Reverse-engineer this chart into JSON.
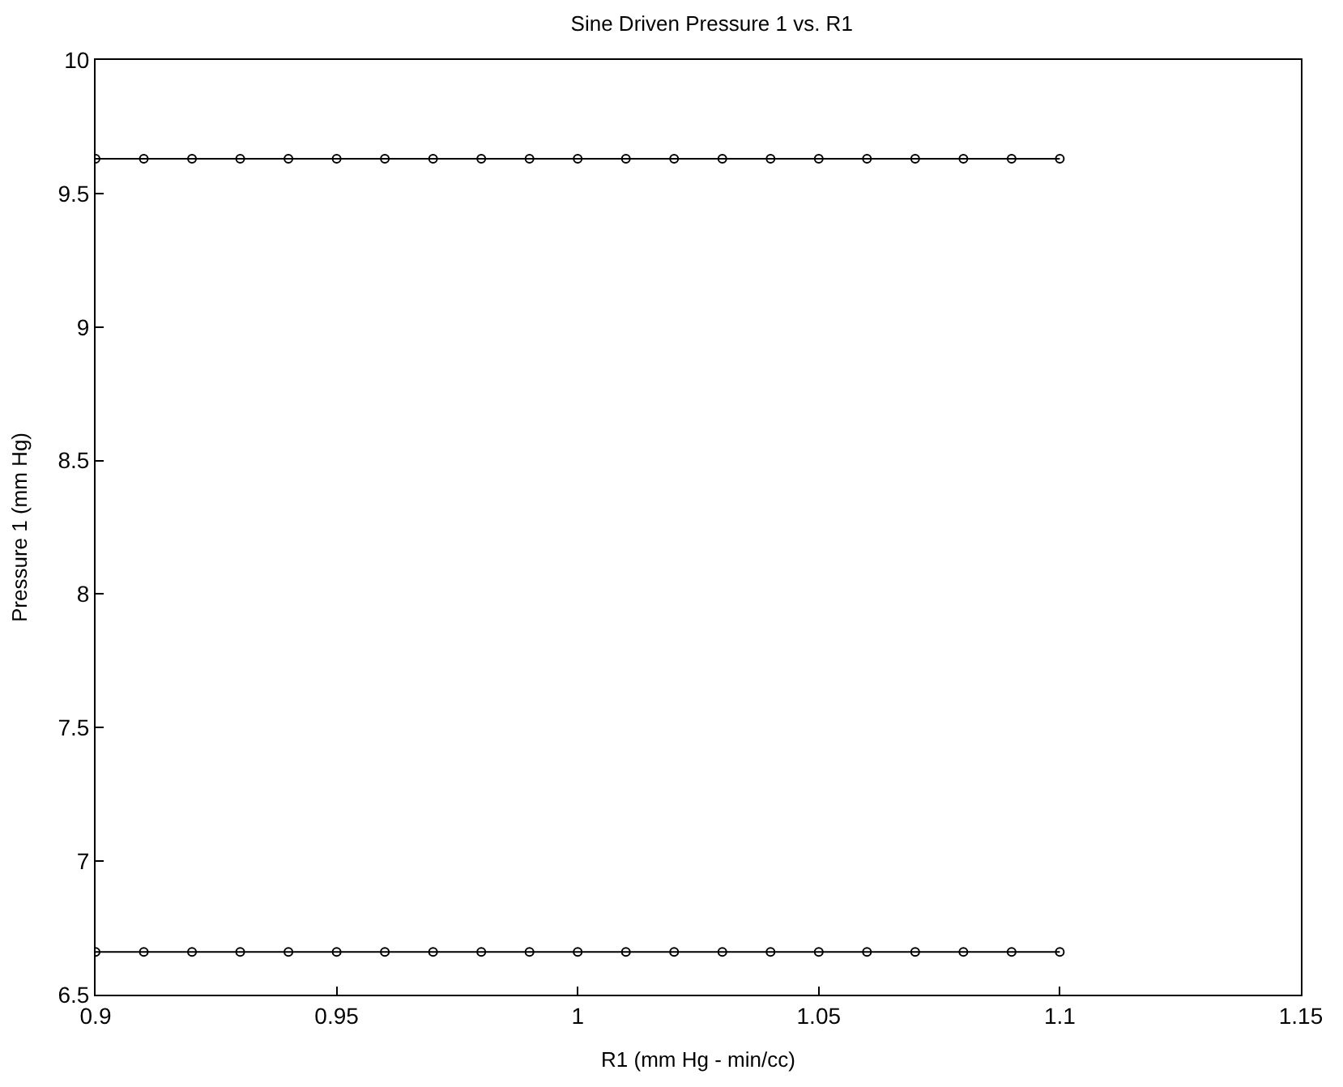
{
  "chart_data": {
    "type": "line",
    "title": "Sine Driven Pressure 1 vs. R1",
    "xlabel": "R1 (mm Hg - min/cc)",
    "ylabel": "Pressure 1 (mm Hg)",
    "x": [
      0.9,
      0.91,
      0.92,
      0.93,
      0.94,
      0.95,
      0.96,
      0.97,
      0.98,
      0.99,
      1.0,
      1.01,
      1.02,
      1.03,
      1.04,
      1.05,
      1.06,
      1.07,
      1.08,
      1.09,
      1.1
    ],
    "series": [
      {
        "color": "#000000",
        "values": [
          9.63,
          9.63,
          9.63,
          9.63,
          9.63,
          9.63,
          9.63,
          9.63,
          9.63,
          9.63,
          9.63,
          9.63,
          9.63,
          9.63,
          9.63,
          9.63,
          9.63,
          9.63,
          9.63,
          9.63,
          9.63
        ]
      },
      {
        "color": "#000000",
        "values": [
          6.66,
          6.66,
          6.66,
          6.66,
          6.66,
          6.66,
          6.66,
          6.66,
          6.66,
          6.66,
          6.66,
          6.66,
          6.66,
          6.66,
          6.66,
          6.66,
          6.66,
          6.66,
          6.66,
          6.66,
          6.66
        ]
      }
    ],
    "xlim": [
      0.9,
      1.15
    ],
    "xticks": [
      0.9,
      0.95,
      1,
      1.05,
      1.1,
      1.15
    ],
    "ylim": [
      6.5,
      10
    ],
    "yticks": [
      6.5,
      7,
      7.5,
      8,
      8.5,
      9,
      9.5,
      10
    ],
    "marker": "circle",
    "line_style": "solid",
    "grid": false
  }
}
